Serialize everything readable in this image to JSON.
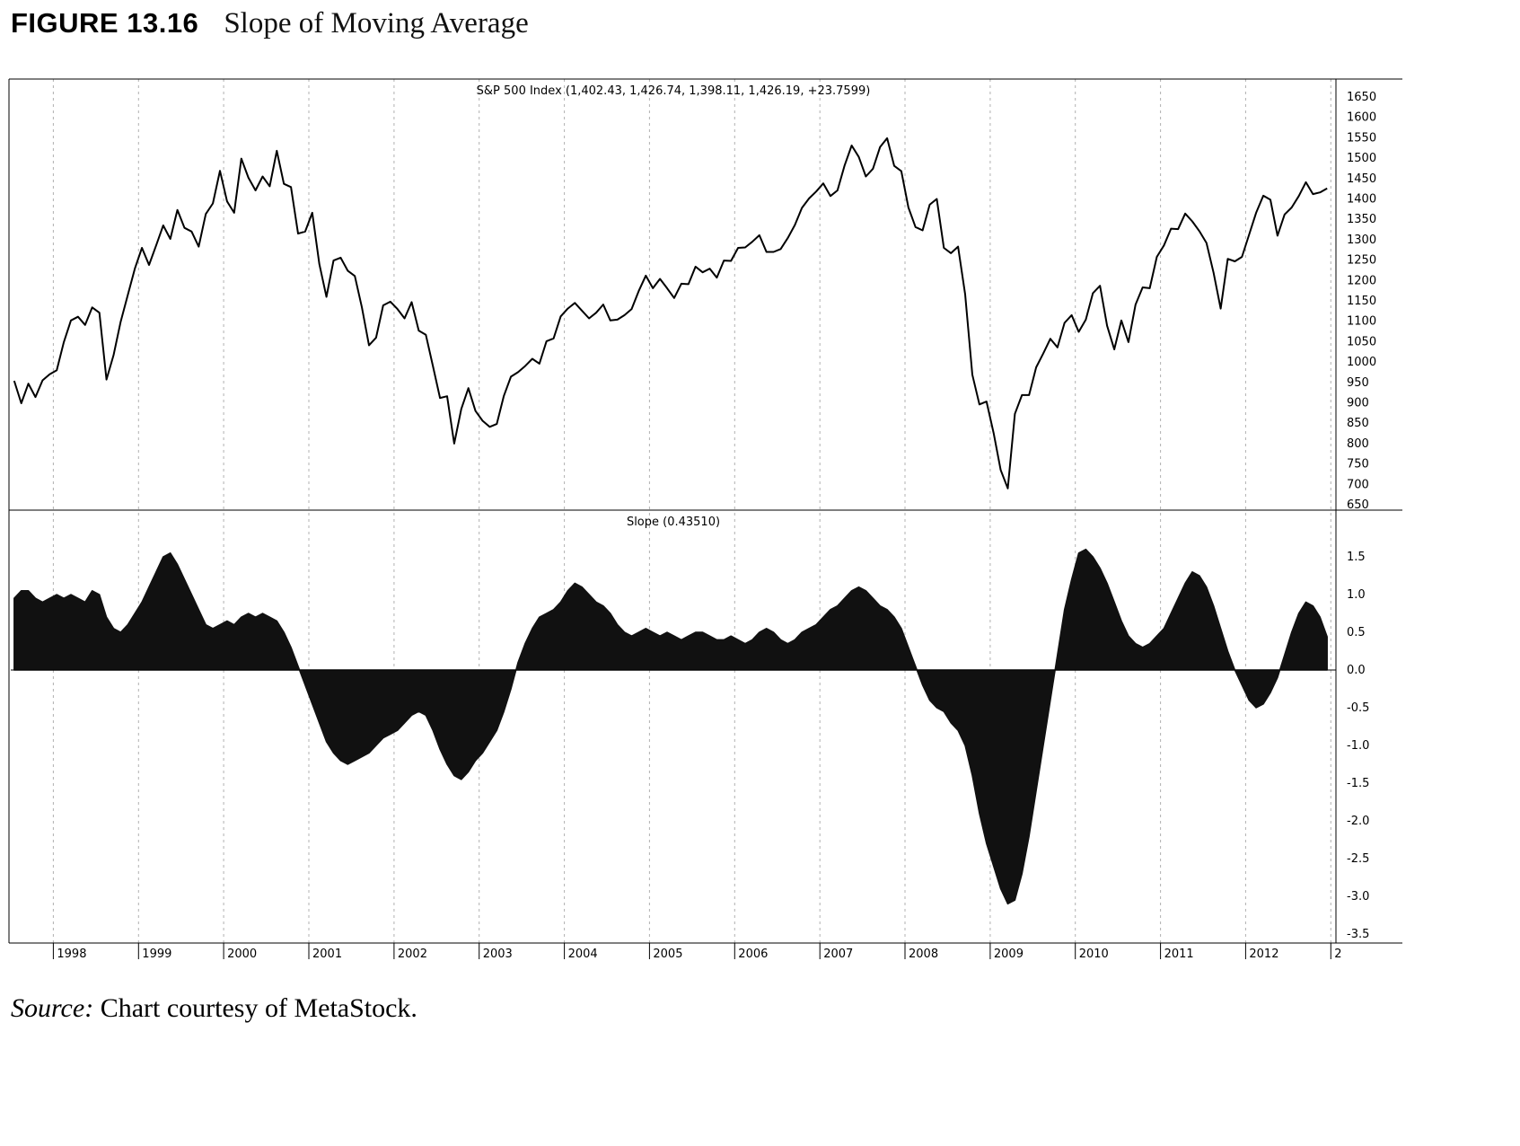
{
  "figure": {
    "label": "FIGURE 13.16",
    "title": "Slope of Moving Average",
    "source_prefix": "Source:",
    "source_text": " Chart courtesy of MetaStock."
  },
  "chart_data": {
    "type": "line",
    "title": "Slope of Moving Average",
    "x_start": 1997.54,
    "x_step": 0.0833333,
    "x_range": [
      1997.5,
      2013.06
    ],
    "x_tick_labels": [
      "1998",
      "1999",
      "2000",
      "2001",
      "2002",
      "2003",
      "2004",
      "2005",
      "2006",
      "2007",
      "2008",
      "2009",
      "2010",
      "2011",
      "2012",
      "2"
    ],
    "x_tick_positions": [
      1998,
      1999,
      2000,
      2001,
      2002,
      2003,
      2004,
      2005,
      2006,
      2007,
      2008,
      2009,
      2010,
      2011,
      2012,
      2013
    ],
    "grid": "vertical-dashed-yearly",
    "legend_position": "none",
    "panels": [
      {
        "type": "line",
        "title": "S&P 500 Index (1,402.43, 1,426.74, 1,398.11, 1,426.19, +23.7599)",
        "series_name": "S&P 500 Index close",
        "ylim": [
          640,
          1672
        ],
        "yticks": [
          1650,
          1600,
          1550,
          1500,
          1450,
          1400,
          1350,
          1300,
          1250,
          1200,
          1150,
          1100,
          1050,
          1000,
          950,
          900,
          850,
          800,
          750,
          700,
          650
        ],
        "values": [
          954,
          899,
          947,
          914,
          955,
          970,
          980,
          1049,
          1102,
          1111,
          1091,
          1134,
          1121,
          957,
          1017,
          1099,
          1164,
          1229,
          1280,
          1238,
          1286,
          1335,
          1302,
          1373,
          1329,
          1320,
          1283,
          1363,
          1389,
          1469,
          1394,
          1366,
          1499,
          1452,
          1421,
          1455,
          1431,
          1518,
          1437,
          1429,
          1315,
          1320,
          1366,
          1240,
          1160,
          1249,
          1256,
          1224,
          1211,
          1134,
          1041,
          1060,
          1139,
          1148,
          1130,
          1107,
          1147,
          1077,
          1067,
          990,
          912,
          916,
          800,
          885,
          936,
          880,
          856,
          841,
          848,
          917,
          964,
          975,
          990,
          1008,
          996,
          1051,
          1058,
          1112,
          1131,
          1145,
          1126,
          1107,
          1121,
          1141,
          1102,
          1104,
          1115,
          1130,
          1174,
          1212,
          1181,
          1204,
          1181,
          1157,
          1192,
          1191,
          1234,
          1220,
          1229,
          1207,
          1249,
          1248,
          1280,
          1281,
          1295,
          1311,
          1270,
          1270,
          1277,
          1304,
          1336,
          1378,
          1401,
          1418,
          1438,
          1407,
          1421,
          1482,
          1531,
          1503,
          1455,
          1474,
          1527,
          1549,
          1481,
          1468,
          1379,
          1331,
          1323,
          1386,
          1400,
          1280,
          1267,
          1283,
          1166,
          969,
          896,
          903,
          826,
          735,
          690,
          873,
          919,
          919,
          987,
          1021,
          1057,
          1036,
          1096,
          1115,
          1074,
          1104,
          1169,
          1187,
          1089,
          1031,
          1102,
          1049,
          1141,
          1183,
          1181,
          1258,
          1286,
          1327,
          1326,
          1364,
          1345,
          1321,
          1292,
          1219,
          1131,
          1253,
          1247,
          1258,
          1312,
          1366,
          1408,
          1398,
          1310,
          1362,
          1379,
          1407,
          1441,
          1412,
          1416,
          1426
        ]
      },
      {
        "type": "area",
        "title": "Slope (0.43510)",
        "series_name": "Slope of moving average",
        "baseline": 0,
        "ylim": [
          -3.6,
          1.8
        ],
        "yticks": [
          "1.5",
          "1.0",
          "0.5",
          "0.0",
          "-0.5",
          "-1.0",
          "-1.5",
          "-2.0",
          "-2.5",
          "-3.0",
          "-3.5"
        ],
        "values": [
          0.95,
          1.05,
          1.05,
          0.95,
          0.9,
          0.95,
          1.0,
          0.95,
          1.0,
          0.95,
          0.9,
          1.05,
          1.0,
          0.7,
          0.55,
          0.5,
          0.6,
          0.75,
          0.9,
          1.1,
          1.3,
          1.5,
          1.55,
          1.4,
          1.2,
          1.0,
          0.8,
          0.6,
          0.55,
          0.6,
          0.65,
          0.6,
          0.7,
          0.75,
          0.7,
          0.75,
          0.7,
          0.65,
          0.5,
          0.3,
          0.05,
          -0.2,
          -0.45,
          -0.7,
          -0.95,
          -1.1,
          -1.2,
          -1.25,
          -1.2,
          -1.15,
          -1.1,
          -1.0,
          -0.9,
          -0.85,
          -0.8,
          -0.7,
          -0.6,
          -0.55,
          -0.6,
          -0.8,
          -1.05,
          -1.25,
          -1.4,
          -1.45,
          -1.35,
          -1.2,
          -1.1,
          -0.95,
          -0.8,
          -0.55,
          -0.25,
          0.1,
          0.35,
          0.55,
          0.7,
          0.75,
          0.8,
          0.9,
          1.05,
          1.15,
          1.1,
          1.0,
          0.9,
          0.85,
          0.75,
          0.6,
          0.5,
          0.45,
          0.5,
          0.55,
          0.5,
          0.45,
          0.5,
          0.45,
          0.4,
          0.45,
          0.5,
          0.5,
          0.45,
          0.4,
          0.4,
          0.45,
          0.4,
          0.35,
          0.4,
          0.5,
          0.55,
          0.5,
          0.4,
          0.35,
          0.4,
          0.5,
          0.55,
          0.6,
          0.7,
          0.8,
          0.85,
          0.95,
          1.05,
          1.1,
          1.05,
          0.95,
          0.85,
          0.8,
          0.7,
          0.55,
          0.3,
          0.05,
          -0.2,
          -0.4,
          -0.5,
          -0.55,
          -0.7,
          -0.8,
          -1.0,
          -1.4,
          -1.9,
          -2.3,
          -2.6,
          -2.9,
          -3.1,
          -3.05,
          -2.7,
          -2.2,
          -1.6,
          -1.0,
          -0.4,
          0.2,
          0.8,
          1.2,
          1.55,
          1.6,
          1.5,
          1.35,
          1.15,
          0.9,
          0.65,
          0.45,
          0.35,
          0.3,
          0.35,
          0.45,
          0.55,
          0.75,
          0.95,
          1.15,
          1.3,
          1.25,
          1.1,
          0.85,
          0.55,
          0.25,
          0.0,
          -0.2,
          -0.4,
          -0.5,
          -0.45,
          -0.3,
          -0.1,
          0.2,
          0.5,
          0.75,
          0.9,
          0.85,
          0.7,
          0.44
        ]
      }
    ],
    "colors": {
      "line": "#000000",
      "fill": "#111111",
      "gridline": "#b0b0b0",
      "background": "#ffffff"
    }
  }
}
